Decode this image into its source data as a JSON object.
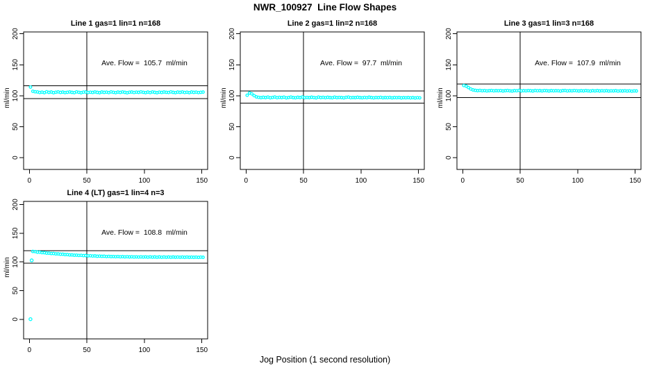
{
  "figure": {
    "title": "NWR_100927  Line Flow Shapes",
    "x_axis_label": "Jog Position (1 second resolution)",
    "background_color": "#ffffff",
    "point_color": "#00ffff",
    "axis_color": "#000000"
  },
  "chart_data": [
    {
      "type": "scatter",
      "title": "Line 1 gas=1 lin=1 n=168",
      "annotation": "Ave. Flow =  105.7  ml/min",
      "ave_flow_ml_min": 105.7,
      "ylabel": "ml/min",
      "xlim": [
        -5,
        155
      ],
      "ylim": [
        -19,
        203
      ],
      "x_ticks": [
        0,
        50,
        100,
        150
      ],
      "y_ticks": [
        0,
        50,
        100,
        150,
        200
      ],
      "ref_line_vertical_x": 50,
      "ref_lines_horizontal_y": [
        95.1,
        116.3
      ],
      "series": {
        "x_start": 1,
        "x_step": 2,
        "y": [
          114.0,
          107.2,
          106.3,
          106.1,
          105.2,
          105.8,
          105.0,
          106.3,
          105.5,
          106.0,
          104.9,
          105.7,
          106.2,
          105.3,
          105.9,
          105.1,
          105.6,
          106.1,
          105.4,
          105.0,
          106.2,
          105.6,
          104.9,
          105.8,
          106.0,
          105.2,
          105.7,
          105.3,
          106.1,
          105.5,
          104.9,
          106.0,
          105.4,
          105.8,
          105.1,
          106.2,
          105.6,
          105.0,
          105.9,
          105.3,
          106.1,
          105.5,
          104.8,
          105.7,
          106.0,
          105.2,
          105.8,
          105.4,
          106.2,
          105.6,
          105.0,
          105.9,
          105.1,
          106.1,
          105.5,
          104.9,
          105.8,
          105.3,
          106.0,
          105.6,
          105.2,
          106.2,
          105.4,
          105.0,
          105.9,
          105.5,
          106.1,
          105.2,
          105.7,
          105.0,
          106.0,
          105.4,
          105.8,
          105.1,
          105.6,
          105.9
        ]
      },
      "extra_points": []
    },
    {
      "type": "scatter",
      "title": "Line 2 gas=1 lin=2 n=168",
      "annotation": "Ave. Flow =  97.7  ml/min",
      "ave_flow_ml_min": 97.7,
      "ylabel": "ml/min",
      "xlim": [
        -5,
        155
      ],
      "ylim": [
        -19,
        203
      ],
      "x_ticks": [
        0,
        50,
        100,
        150
      ],
      "y_ticks": [
        0,
        50,
        100,
        150,
        200
      ],
      "ref_line_vertical_x": 50,
      "ref_lines_horizontal_y": [
        87.9,
        107.5
      ],
      "series": {
        "x_start": 1,
        "x_step": 2,
        "y": [
          100.8,
          104.5,
          103.0,
          100.2,
          98.2,
          97.4,
          96.9,
          97.5,
          97.0,
          97.8,
          96.7,
          97.3,
          97.9,
          96.8,
          97.4,
          97.1,
          97.7,
          96.6,
          97.2,
          97.8,
          97.0,
          96.7,
          97.5,
          97.1,
          97.9,
          96.8,
          97.3,
          96.9,
          97.6,
          97.2,
          96.6,
          97.8,
          97.0,
          97.4,
          96.8,
          97.5,
          97.1,
          96.7,
          97.7,
          96.9,
          97.3,
          97.0,
          96.6,
          97.4,
          97.8,
          96.8,
          97.2,
          96.9,
          97.5,
          97.1,
          96.7,
          97.3,
          96.8,
          97.6,
          97.0,
          96.6,
          97.2,
          96.9,
          97.4,
          96.7,
          97.1,
          96.8,
          97.3,
          96.6,
          97.0,
          96.8,
          97.2,
          96.5,
          96.9,
          96.7,
          97.1,
          96.6,
          96.9,
          96.4,
          96.8,
          96.6
        ]
      },
      "extra_points": []
    },
    {
      "type": "scatter",
      "title": "Line 3 gas=1 lin=3 n=168",
      "annotation": "Ave. Flow =  107.9  ml/min",
      "ave_flow_ml_min": 107.9,
      "ylabel": "ml/min",
      "xlim": [
        -5,
        155
      ],
      "ylim": [
        -19,
        203
      ],
      "x_ticks": [
        0,
        50,
        100,
        150
      ],
      "y_ticks": [
        0,
        50,
        100,
        150,
        200
      ],
      "ref_line_vertical_x": 50,
      "ref_lines_horizontal_y": [
        97.1,
        118.7
      ],
      "series": {
        "x_start": 1,
        "x_step": 2,
        "y": [
          116.4,
          115.6,
          113.2,
          110.8,
          109.4,
          108.7,
          108.3,
          108.6,
          108.0,
          108.4,
          107.8,
          108.2,
          108.5,
          107.9,
          108.3,
          108.0,
          108.4,
          107.7,
          108.1,
          108.5,
          107.9,
          107.6,
          108.3,
          108.0,
          108.6,
          107.8,
          108.2,
          107.9,
          108.4,
          108.1,
          107.7,
          108.5,
          108.0,
          108.3,
          107.8,
          108.4,
          108.1,
          107.7,
          108.3,
          107.9,
          108.2,
          108.0,
          107.6,
          108.3,
          108.5,
          107.8,
          108.1,
          107.9,
          108.4,
          108.0,
          107.7,
          108.2,
          107.8,
          108.4,
          107.9,
          107.6,
          108.1,
          107.8,
          108.3,
          107.7,
          108.0,
          107.8,
          108.2,
          107.6,
          107.9,
          107.8,
          108.1,
          107.5,
          107.9,
          107.7,
          108.0,
          107.6,
          107.9,
          107.4,
          107.8,
          107.7
        ]
      },
      "extra_points": []
    },
    {
      "type": "scatter",
      "title": "Line 4 (LT) gas=1 lin=4 n=3",
      "annotation": "Ave. Flow =  108.8  ml/min",
      "ave_flow_ml_min": 108.8,
      "ylabel": "ml/min",
      "xlim": [
        -5,
        155
      ],
      "ylim": [
        -34,
        205.5
      ],
      "x_ticks": [
        0,
        50,
        100,
        150
      ],
      "y_ticks": [
        0,
        50,
        100,
        150,
        200
      ],
      "ref_line_vertical_x": 50,
      "ref_lines_horizontal_y": [
        97.9,
        119.7
      ],
      "series": {
        "x_start": 3,
        "x_step": 2,
        "y": [
          118.3,
          118.0,
          117.1,
          117.0,
          116.2,
          116.1,
          115.4,
          115.3,
          114.7,
          114.6,
          114.0,
          114.0,
          113.4,
          113.4,
          112.8,
          112.8,
          112.3,
          112.3,
          111.8,
          111.9,
          111.4,
          111.5,
          111.0,
          111.1,
          110.7,
          110.8,
          110.3,
          110.5,
          110.0,
          110.2,
          109.8,
          109.9,
          109.5,
          109.7,
          109.3,
          109.5,
          109.1,
          109.4,
          109.0,
          109.2,
          108.8,
          109.1,
          108.7,
          109.0,
          108.6,
          108.9,
          108.5,
          108.9,
          108.5,
          108.8,
          108.4,
          108.8,
          108.4,
          108.7,
          108.3,
          108.7,
          108.3,
          108.6,
          108.3,
          108.6,
          108.2,
          108.6,
          108.2,
          108.5,
          108.2,
          108.5,
          108.1,
          108.5,
          108.1,
          108.4,
          108.1,
          108.4,
          108.0,
          108.4,
          108.1
        ]
      },
      "extra_points": [
        [
          1,
          0.3
        ],
        [
          2,
          102.8
        ]
      ]
    }
  ]
}
